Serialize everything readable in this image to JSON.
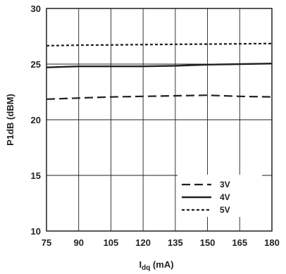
{
  "chart_data": {
    "type": "line",
    "xlabel_main": "I",
    "xlabel_sub": "dq",
    "xlabel_unit": " (mA)",
    "ylabel": "P1dB (dBM)",
    "xlim": [
      75,
      180
    ],
    "ylim": [
      10,
      30
    ],
    "x_ticks": [
      "75",
      "90",
      "105",
      "120",
      "135",
      "150",
      "165",
      "180"
    ],
    "y_ticks": [
      "10",
      "15",
      "20",
      "25",
      "30"
    ],
    "grid": true,
    "legend_position": "bottom-right",
    "series": [
      {
        "name": "3V",
        "style": "long-dash",
        "x": [
          75,
          90,
          105,
          120,
          135,
          150,
          165,
          180
        ],
        "y": [
          21.85,
          21.95,
          22.05,
          22.1,
          22.15,
          22.2,
          22.1,
          22.05
        ]
      },
      {
        "name": "4V",
        "style": "solid",
        "x": [
          75,
          90,
          105,
          120,
          135,
          150,
          165,
          180
        ],
        "y": [
          24.7,
          24.8,
          24.8,
          24.8,
          24.85,
          24.95,
          25.0,
          25.05
        ]
      },
      {
        "name": "5V",
        "style": "short-dash",
        "x": [
          75,
          90,
          105,
          120,
          135,
          150,
          165,
          180
        ],
        "y": [
          26.65,
          26.7,
          26.72,
          26.75,
          26.78,
          26.8,
          26.82,
          26.85
        ]
      }
    ]
  }
}
